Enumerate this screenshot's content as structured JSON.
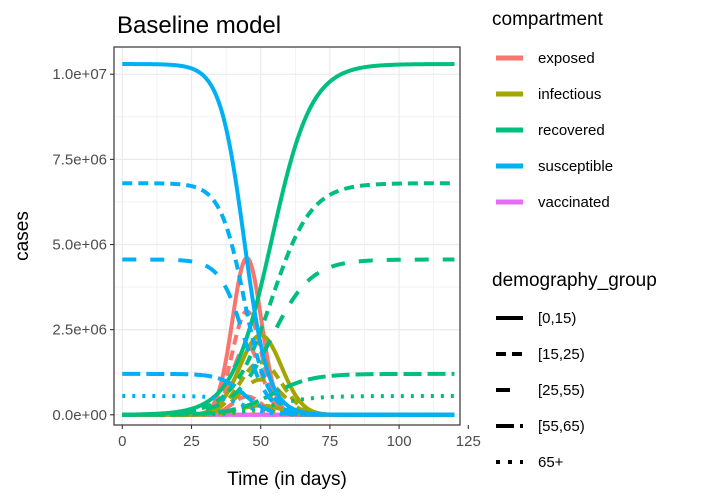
{
  "chart_data": {
    "type": "line",
    "title": "Baseline model",
    "xlabel": "Time (in days)",
    "ylabel": "cases",
    "xlim": [
      -3,
      122
    ],
    "ylim": [
      -300000,
      10800000
    ],
    "x_ticks": [
      0,
      25,
      50,
      75,
      100,
      125
    ],
    "x_tick_labels": [
      "0",
      "25",
      "50",
      "75",
      "100",
      "125"
    ],
    "y_ticks": [
      0,
      2500000,
      5000000,
      7500000,
      10000000
    ],
    "y_tick_labels": [
      "0.0e+00",
      "2.5e+06",
      "5.0e+06",
      "7.5e+06",
      "1.0e+07"
    ],
    "grid": true,
    "legend_placement": "right",
    "color_legend": {
      "title": "compartment",
      "entries": [
        {
          "label": "exposed",
          "color": "#F8766D"
        },
        {
          "label": "infectious",
          "color": "#A3A500"
        },
        {
          "label": "recovered",
          "color": "#00BF7D"
        },
        {
          "label": "susceptible",
          "color": "#00B0F6"
        },
        {
          "label": "vaccinated",
          "color": "#E76BF3"
        }
      ]
    },
    "linetype_legend": {
      "title": "demography_group",
      "entries": [
        {
          "label": "[0,15)",
          "dash": "solid"
        },
        {
          "label": "[15,25)",
          "dash": "dashed"
        },
        {
          "label": "[25,55)",
          "dash": "longdash-sparse"
        },
        {
          "label": "[55,65)",
          "dash": "longdash"
        },
        {
          "label": "65+",
          "dash": "dotted"
        }
      ]
    },
    "groups": [
      {
        "group": "[0,15)",
        "population": 10300000,
        "peak_day": 45,
        "exposed_scale": 0.447,
        "infectious_scale": 0.227,
        "vaccinated": 0
      },
      {
        "group": "[15,25)",
        "population": 6800000,
        "peak_day": 45,
        "exposed_scale": 0.447,
        "infectious_scale": 0.227,
        "vaccinated": 0
      },
      {
        "group": "[25,55)",
        "population": 4560000,
        "peak_day": 45,
        "exposed_scale": 0.447,
        "infectious_scale": 0.227,
        "vaccinated": 0
      },
      {
        "group": "[55,65)",
        "population": 1200000,
        "peak_day": 45,
        "exposed_scale": 0.447,
        "infectious_scale": 0.227,
        "vaccinated": 0
      },
      {
        "group": "65+",
        "population": 550000,
        "peak_day": 45,
        "exposed_scale": 0.447,
        "infectious_scale": 0.227,
        "vaccinated": 0
      }
    ],
    "x_range": [
      0,
      120
    ]
  }
}
